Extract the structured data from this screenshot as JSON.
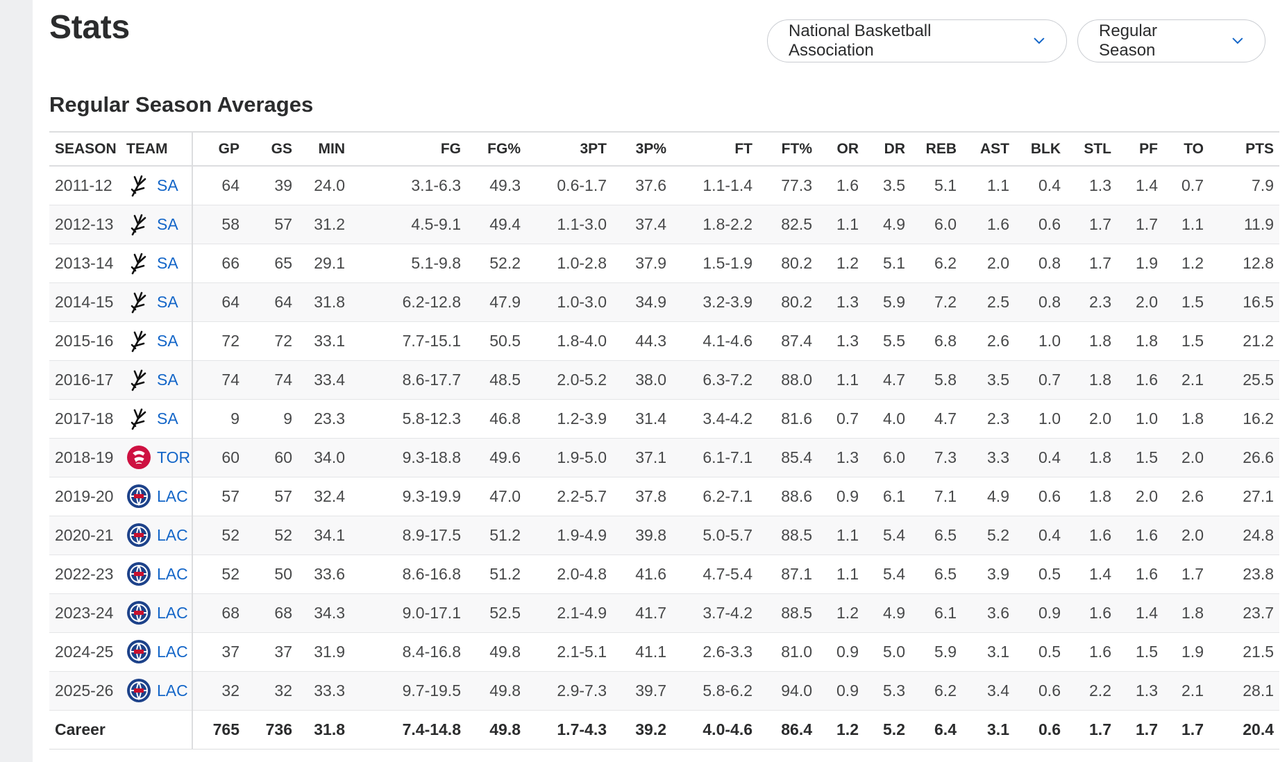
{
  "header": {
    "title": "Stats",
    "league_label": "National Basketball Association",
    "season_type_label": "Regular Season"
  },
  "section": {
    "title": "Regular Season Averages"
  },
  "columns": [
    "SEASON",
    "TEAM",
    "GP",
    "GS",
    "MIN",
    "FG",
    "FG%",
    "3PT",
    "3P%",
    "FT",
    "FT%",
    "OR",
    "DR",
    "REB",
    "AST",
    "BLK",
    "STL",
    "PF",
    "TO",
    "PTS"
  ],
  "team_logos": {
    "SA": "spurs-logo-icon",
    "TOR": "raptors-logo-icon",
    "LAC": "clippers-logo-icon"
  },
  "colors": {
    "link": "#1466c8",
    "raptors_red": "#ce1141",
    "clippers_navy": "#1d428a"
  },
  "rows": [
    {
      "season": "2011-12",
      "team": "SA",
      "gp": "64",
      "gs": "39",
      "min": "24.0",
      "fg": "3.1-6.3",
      "fgp": "49.3",
      "tpt": "0.6-1.7",
      "tpp": "37.6",
      "ft": "1.1-1.4",
      "ftp": "77.3",
      "or": "1.6",
      "dr": "3.5",
      "reb": "5.1",
      "ast": "1.1",
      "blk": "0.4",
      "stl": "1.3",
      "pf": "1.4",
      "to": "0.7",
      "pts": "7.9"
    },
    {
      "season": "2012-13",
      "team": "SA",
      "gp": "58",
      "gs": "57",
      "min": "31.2",
      "fg": "4.5-9.1",
      "fgp": "49.4",
      "tpt": "1.1-3.0",
      "tpp": "37.4",
      "ft": "1.8-2.2",
      "ftp": "82.5",
      "or": "1.1",
      "dr": "4.9",
      "reb": "6.0",
      "ast": "1.6",
      "blk": "0.6",
      "stl": "1.7",
      "pf": "1.7",
      "to": "1.1",
      "pts": "11.9"
    },
    {
      "season": "2013-14",
      "team": "SA",
      "gp": "66",
      "gs": "65",
      "min": "29.1",
      "fg": "5.1-9.8",
      "fgp": "52.2",
      "tpt": "1.0-2.8",
      "tpp": "37.9",
      "ft": "1.5-1.9",
      "ftp": "80.2",
      "or": "1.2",
      "dr": "5.1",
      "reb": "6.2",
      "ast": "2.0",
      "blk": "0.8",
      "stl": "1.7",
      "pf": "1.9",
      "to": "1.2",
      "pts": "12.8"
    },
    {
      "season": "2014-15",
      "team": "SA",
      "gp": "64",
      "gs": "64",
      "min": "31.8",
      "fg": "6.2-12.8",
      "fgp": "47.9",
      "tpt": "1.0-3.0",
      "tpp": "34.9",
      "ft": "3.2-3.9",
      "ftp": "80.2",
      "or": "1.3",
      "dr": "5.9",
      "reb": "7.2",
      "ast": "2.5",
      "blk": "0.8",
      "stl": "2.3",
      "pf": "2.0",
      "to": "1.5",
      "pts": "16.5"
    },
    {
      "season": "2015-16",
      "team": "SA",
      "gp": "72",
      "gs": "72",
      "min": "33.1",
      "fg": "7.7-15.1",
      "fgp": "50.5",
      "tpt": "1.8-4.0",
      "tpp": "44.3",
      "ft": "4.1-4.6",
      "ftp": "87.4",
      "or": "1.3",
      "dr": "5.5",
      "reb": "6.8",
      "ast": "2.6",
      "blk": "1.0",
      "stl": "1.8",
      "pf": "1.8",
      "to": "1.5",
      "pts": "21.2"
    },
    {
      "season": "2016-17",
      "team": "SA",
      "gp": "74",
      "gs": "74",
      "min": "33.4",
      "fg": "8.6-17.7",
      "fgp": "48.5",
      "tpt": "2.0-5.2",
      "tpp": "38.0",
      "ft": "6.3-7.2",
      "ftp": "88.0",
      "or": "1.1",
      "dr": "4.7",
      "reb": "5.8",
      "ast": "3.5",
      "blk": "0.7",
      "stl": "1.8",
      "pf": "1.6",
      "to": "2.1",
      "pts": "25.5"
    },
    {
      "season": "2017-18",
      "team": "SA",
      "gp": "9",
      "gs": "9",
      "min": "23.3",
      "fg": "5.8-12.3",
      "fgp": "46.8",
      "tpt": "1.2-3.9",
      "tpp": "31.4",
      "ft": "3.4-4.2",
      "ftp": "81.6",
      "or": "0.7",
      "dr": "4.0",
      "reb": "4.7",
      "ast": "2.3",
      "blk": "1.0",
      "stl": "2.0",
      "pf": "1.0",
      "to": "1.8",
      "pts": "16.2"
    },
    {
      "season": "2018-19",
      "team": "TOR",
      "gp": "60",
      "gs": "60",
      "min": "34.0",
      "fg": "9.3-18.8",
      "fgp": "49.6",
      "tpt": "1.9-5.0",
      "tpp": "37.1",
      "ft": "6.1-7.1",
      "ftp": "85.4",
      "or": "1.3",
      "dr": "6.0",
      "reb": "7.3",
      "ast": "3.3",
      "blk": "0.4",
      "stl": "1.8",
      "pf": "1.5",
      "to": "2.0",
      "pts": "26.6"
    },
    {
      "season": "2019-20",
      "team": "LAC",
      "gp": "57",
      "gs": "57",
      "min": "32.4",
      "fg": "9.3-19.9",
      "fgp": "47.0",
      "tpt": "2.2-5.7",
      "tpp": "37.8",
      "ft": "6.2-7.1",
      "ftp": "88.6",
      "or": "0.9",
      "dr": "6.1",
      "reb": "7.1",
      "ast": "4.9",
      "blk": "0.6",
      "stl": "1.8",
      "pf": "2.0",
      "to": "2.6",
      "pts": "27.1"
    },
    {
      "season": "2020-21",
      "team": "LAC",
      "gp": "52",
      "gs": "52",
      "min": "34.1",
      "fg": "8.9-17.5",
      "fgp": "51.2",
      "tpt": "1.9-4.9",
      "tpp": "39.8",
      "ft": "5.0-5.7",
      "ftp": "88.5",
      "or": "1.1",
      "dr": "5.4",
      "reb": "6.5",
      "ast": "5.2",
      "blk": "0.4",
      "stl": "1.6",
      "pf": "1.6",
      "to": "2.0",
      "pts": "24.8"
    },
    {
      "season": "2022-23",
      "team": "LAC",
      "gp": "52",
      "gs": "50",
      "min": "33.6",
      "fg": "8.6-16.8",
      "fgp": "51.2",
      "tpt": "2.0-4.8",
      "tpp": "41.6",
      "ft": "4.7-5.4",
      "ftp": "87.1",
      "or": "1.1",
      "dr": "5.4",
      "reb": "6.5",
      "ast": "3.9",
      "blk": "0.5",
      "stl": "1.4",
      "pf": "1.6",
      "to": "1.7",
      "pts": "23.8"
    },
    {
      "season": "2023-24",
      "team": "LAC",
      "gp": "68",
      "gs": "68",
      "min": "34.3",
      "fg": "9.0-17.1",
      "fgp": "52.5",
      "tpt": "2.1-4.9",
      "tpp": "41.7",
      "ft": "3.7-4.2",
      "ftp": "88.5",
      "or": "1.2",
      "dr": "4.9",
      "reb": "6.1",
      "ast": "3.6",
      "blk": "0.9",
      "stl": "1.6",
      "pf": "1.4",
      "to": "1.8",
      "pts": "23.7"
    },
    {
      "season": "2024-25",
      "team": "LAC",
      "gp": "37",
      "gs": "37",
      "min": "31.9",
      "fg": "8.4-16.8",
      "fgp": "49.8",
      "tpt": "2.1-5.1",
      "tpp": "41.1",
      "ft": "2.6-3.3",
      "ftp": "81.0",
      "or": "0.9",
      "dr": "5.0",
      "reb": "5.9",
      "ast": "3.1",
      "blk": "0.5",
      "stl": "1.6",
      "pf": "1.5",
      "to": "1.9",
      "pts": "21.5"
    },
    {
      "season": "2025-26",
      "team": "LAC",
      "gp": "32",
      "gs": "32",
      "min": "33.3",
      "fg": "9.7-19.5",
      "fgp": "49.8",
      "tpt": "2.9-7.3",
      "tpp": "39.7",
      "ft": "5.8-6.2",
      "ftp": "94.0",
      "or": "0.9",
      "dr": "5.3",
      "reb": "6.2",
      "ast": "3.4",
      "blk": "0.6",
      "stl": "2.2",
      "pf": "1.3",
      "to": "2.1",
      "pts": "28.1"
    }
  ],
  "career": {
    "label": "Career",
    "gp": "765",
    "gs": "736",
    "min": "31.8",
    "fg": "7.4-14.8",
    "fgp": "49.8",
    "tpt": "1.7-4.3",
    "tpp": "39.2",
    "ft": "4.0-4.6",
    "ftp": "86.4",
    "or": "1.2",
    "dr": "5.2",
    "reb": "6.4",
    "ast": "3.1",
    "blk": "0.6",
    "stl": "1.7",
    "pf": "1.7",
    "to": "1.7",
    "pts": "20.4"
  }
}
